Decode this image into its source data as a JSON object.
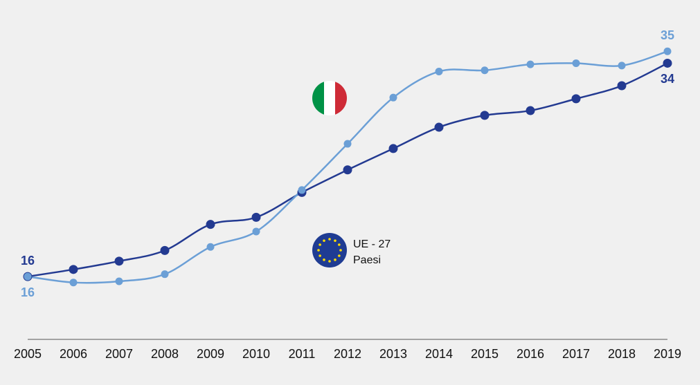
{
  "chart_data": {
    "type": "line",
    "categories": [
      "2005",
      "2006",
      "2007",
      "2008",
      "2009",
      "2010",
      "2011",
      "2012",
      "2013",
      "2014",
      "2015",
      "2016",
      "2017",
      "2018",
      "2019"
    ],
    "series": [
      {
        "name": "UE - 27 Paesi",
        "color": "#233a91",
        "values": [
          16,
          16.6,
          17.3,
          18.2,
          20.4,
          21.0,
          23.1,
          25.0,
          26.8,
          28.6,
          29.6,
          30.0,
          31.0,
          32.1,
          34
        ]
      },
      {
        "color": "#6b9fd6",
        "values": [
          16,
          15.5,
          15.6,
          16.2,
          18.5,
          19.8,
          23.3,
          27.2,
          31.1,
          33.3,
          33.4,
          33.9,
          34.0,
          33.8,
          35
        ]
      }
    ],
    "ylim": [
      10.7,
      37
    ]
  }
}
